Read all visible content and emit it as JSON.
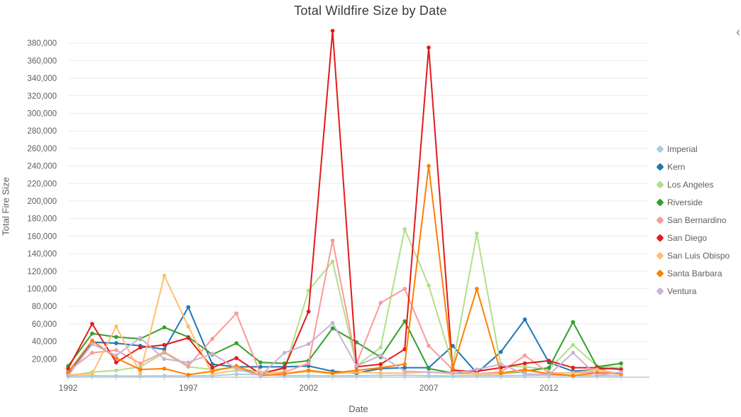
{
  "title": "Total Wildfire Size by Date",
  "x_axis_label": "Date",
  "y_axis_label": "Total Fire Size",
  "controls": {
    "chevron_left": "‹"
  },
  "chart_data": {
    "type": "line",
    "title": "Total Wildfire Size by Date",
    "xlabel": "Date",
    "ylabel": "Total Fire Size",
    "x": [
      1992,
      1993,
      1994,
      1995,
      1996,
      1997,
      1998,
      1999,
      2000,
      2001,
      2002,
      2003,
      2004,
      2005,
      2006,
      2007,
      2008,
      2009,
      2010,
      2011,
      2012,
      2013,
      2014,
      2015
    ],
    "x_tick_labels": [
      1992,
      1997,
      2002,
      2007,
      2012
    ],
    "ylim": [
      0,
      396000
    ],
    "y_tick_min": 20000,
    "y_tick_max": 380000,
    "y_tick_step": 20000,
    "grid": true,
    "legend_position": "right",
    "series": [
      {
        "name": "Imperial",
        "color": "#a6cee3",
        "values": [
          500,
          800,
          600,
          500,
          700,
          600,
          900,
          2500,
          2000,
          800,
          1000,
          700,
          900,
          1200,
          1500,
          800,
          600,
          1000,
          800,
          1200,
          1500,
          700,
          900,
          800
        ]
      },
      {
        "name": "Kern",
        "color": "#1f78b4",
        "values": [
          3000,
          39000,
          38000,
          35000,
          31000,
          79000,
          14000,
          11000,
          11000,
          11000,
          12000,
          6000,
          4000,
          9000,
          10000,
          10000,
          35000,
          4000,
          28000,
          65000,
          16000,
          6000,
          8000,
          10000
        ]
      },
      {
        "name": "Los Angeles",
        "color": "#b2df8a",
        "values": [
          1000,
          5000,
          7000,
          11000,
          27000,
          11000,
          8000,
          10000,
          5000,
          8000,
          98000,
          131000,
          12000,
          33000,
          168000,
          104000,
          13000,
          163000,
          12000,
          11000,
          8000,
          36000,
          12000,
          10000
        ]
      },
      {
        "name": "Riverside",
        "color": "#33a02c",
        "values": [
          12000,
          49000,
          45000,
          43000,
          56000,
          45000,
          25000,
          38000,
          16000,
          15000,
          18000,
          55000,
          39000,
          22000,
          63000,
          9000,
          4000,
          3000,
          3000,
          6000,
          10000,
          62000,
          11000,
          15000
        ]
      },
      {
        "name": "San Bernardino",
        "color": "#fb9a99",
        "values": [
          6000,
          27000,
          30000,
          15000,
          28000,
          12000,
          43000,
          72000,
          3000,
          5000,
          15000,
          155000,
          15000,
          84000,
          100000,
          35000,
          8000,
          3000,
          5000,
          24000,
          4000,
          4000,
          5000,
          4000
        ]
      },
      {
        "name": "San Diego",
        "color": "#e31a1c",
        "values": [
          9000,
          60000,
          16000,
          33000,
          36000,
          44000,
          10000,
          21000,
          3000,
          10000,
          74000,
          394000,
          11000,
          14000,
          31000,
          375000,
          7000,
          6000,
          10000,
          15000,
          18000,
          10000,
          10000,
          8000
        ]
      },
      {
        "name": "San Luis Obispo",
        "color": "#fdbf6f",
        "values": [
          2000,
          3000,
          57000,
          4000,
          115000,
          57000,
          3000,
          7000,
          5000,
          3000,
          6000,
          3000,
          5000,
          4000,
          4000,
          5000,
          3000,
          3000,
          3000,
          7000,
          3000,
          4000,
          8000,
          3000
        ]
      },
      {
        "name": "Santa Barbara",
        "color": "#ff7f00",
        "values": [
          5000,
          41000,
          21000,
          8000,
          9000,
          2000,
          6000,
          12000,
          1000,
          3000,
          7000,
          4000,
          7000,
          10000,
          14000,
          240000,
          9000,
          100000,
          4000,
          8000,
          3000,
          1000,
          4000,
          3000
        ]
      },
      {
        "name": "Ventura",
        "color": "#cab2d6",
        "values": [
          1000,
          37000,
          24000,
          44000,
          20000,
          16000,
          26000,
          9000,
          1000,
          27000,
          37000,
          61000,
          12000,
          24000,
          6000,
          5000,
          4000,
          8000,
          14000,
          3000,
          2000,
          27000,
          1000,
          5000
        ]
      }
    ]
  }
}
